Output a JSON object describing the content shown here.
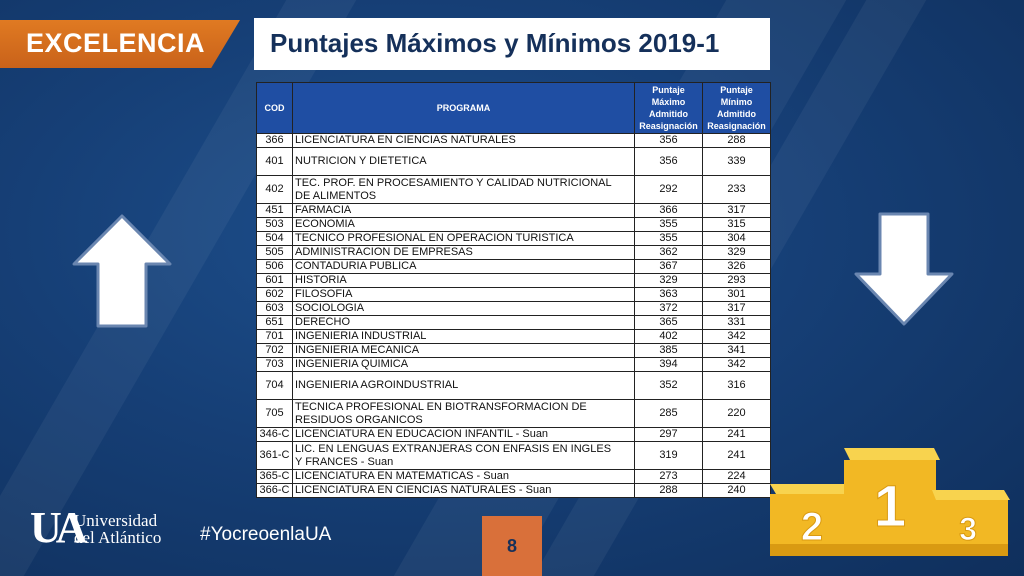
{
  "header": {
    "badge_label": "EXCELENCIA",
    "title": "Puntajes Máximos y Mínimos 2019-1"
  },
  "table": {
    "headers": {
      "cod": "COD",
      "programa": "PROGRAMA",
      "max": [
        "Puntaje",
        "Máximo",
        "Admitido",
        "Reasignación"
      ],
      "min": [
        "Puntaje",
        "Mínimo",
        "Admitido",
        "Reasignación"
      ]
    },
    "rows": [
      {
        "cod": "366",
        "programa": [
          "LICENCIATURA EN CIENCIAS NATURALES"
        ],
        "max": "356",
        "min": "288",
        "tall": false
      },
      {
        "cod": "401",
        "programa": [
          "NUTRICION Y DIETETICA"
        ],
        "max": "356",
        "min": "339",
        "tall": true
      },
      {
        "cod": "402",
        "programa": [
          "TEC. PROF. EN PROCESAMIENTO Y CALIDAD NUTRICIONAL",
          "DE ALIMENTOS"
        ],
        "max": "292",
        "min": "233",
        "tall": true
      },
      {
        "cod": "451",
        "programa": [
          "FARMACIA"
        ],
        "max": "366",
        "min": "317",
        "tall": false
      },
      {
        "cod": "503",
        "programa": [
          "ECONOMIA"
        ],
        "max": "355",
        "min": "315",
        "tall": false
      },
      {
        "cod": "504",
        "programa": [
          "TECNICO PROFESIONAL EN OPERACION TURISTICA"
        ],
        "max": "355",
        "min": "304",
        "tall": false
      },
      {
        "cod": "505",
        "programa": [
          "ADMINISTRACION DE EMPRESAS"
        ],
        "max": "362",
        "min": "329",
        "tall": false
      },
      {
        "cod": "506",
        "programa": [
          "CONTADURIA PUBLICA"
        ],
        "max": "367",
        "min": "326",
        "tall": false
      },
      {
        "cod": "601",
        "programa": [
          "HISTORIA"
        ],
        "max": "329",
        "min": "293",
        "tall": false
      },
      {
        "cod": "602",
        "programa": [
          "FILOSOFIA"
        ],
        "max": "363",
        "min": "301",
        "tall": false
      },
      {
        "cod": "603",
        "programa": [
          "SOCIOLOGIA"
        ],
        "max": "372",
        "min": "317",
        "tall": false
      },
      {
        "cod": "651",
        "programa": [
          "DERECHO"
        ],
        "max": "365",
        "min": "331",
        "tall": false
      },
      {
        "cod": "701",
        "programa": [
          "INGENIERIA INDUSTRIAL"
        ],
        "max": "402",
        "min": "342",
        "tall": false
      },
      {
        "cod": "702",
        "programa": [
          "INGENIERIA MECANICA"
        ],
        "max": "385",
        "min": "341",
        "tall": false
      },
      {
        "cod": "703",
        "programa": [
          "INGENIERIA QUIMICA"
        ],
        "max": "394",
        "min": "342",
        "tall": false
      },
      {
        "cod": "704",
        "programa": [
          "INGENIERIA AGROINDUSTRIAL"
        ],
        "max": "352",
        "min": "316",
        "tall": true
      },
      {
        "cod": "705",
        "programa": [
          "TECNICA PROFESIONAL EN BIOTRANSFORMACION DE",
          "RESIDUOS ORGANICOS"
        ],
        "max": "285",
        "min": "220",
        "tall": true
      },
      {
        "cod": "346-C",
        "programa": [
          "LICENCIATURA EN EDUCACION INFANTIL - Suan"
        ],
        "max": "297",
        "min": "241",
        "tall": false
      },
      {
        "cod": "361-C",
        "programa": [
          "LIC. EN LENGUAS EXTRANJERAS CON ENFASIS EN INGLES",
          "Y FRANCES - Suan"
        ],
        "max": "319",
        "min": "241",
        "tall": true
      },
      {
        "cod": "365-C",
        "programa": [
          "LICENCIATURA EN MATEMATICAS - Suan"
        ],
        "max": "273",
        "min": "224",
        "tall": false
      },
      {
        "cod": "366-C",
        "programa": [
          "LICENCIATURA EN CIENCIAS NATURALES -  Suan"
        ],
        "max": "288",
        "min": "240",
        "tall": false
      }
    ]
  },
  "footer": {
    "logo_mark": "UA",
    "logo_line1": "Universidad",
    "logo_line2": "del Atlántico",
    "hashtag": "#YocreoenlaUA",
    "page_number": "8"
  },
  "podium": {
    "places": [
      "1",
      "2",
      "3"
    ],
    "colors": {
      "gold": "#f2b824",
      "gold_dark": "#d99a12",
      "gold_light": "#f8d34e"
    }
  },
  "icons": {
    "up_arrow": "arrow-up-icon",
    "down_arrow": "arrow-down-icon"
  },
  "colors": {
    "background": "#163f76",
    "badge": "#e07a22",
    "table_header": "#1f4ea3",
    "page_box": "#d9703a"
  }
}
